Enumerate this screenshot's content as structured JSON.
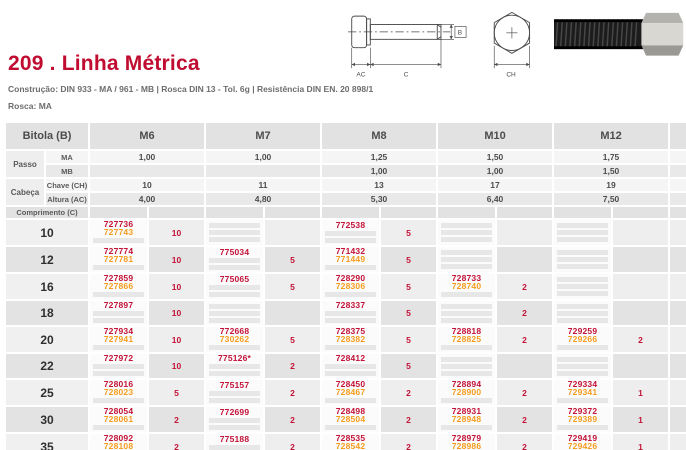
{
  "header": {
    "title": "209 . Linha Métrica",
    "construction": "Construção: DIN 933 - MA / 961 - MB | Rosca DIN 13 - Tol. 6g | Resistência DIN EN. 20 898/1",
    "rosca": "Rosca: MA"
  },
  "diagram": {
    "labels": {
      "ac": "AC",
      "c": "C",
      "b": "B",
      "ch": "CH"
    }
  },
  "colors": {
    "accent": "#c00c30",
    "code_ma": "#c31238",
    "code_mb": "#f59c1d",
    "header_bg": "#e2e2e2"
  },
  "table": {
    "bitola_header": "Bitola (B)",
    "sizes": [
      "M6",
      "M7",
      "M8",
      "M10",
      "M12"
    ],
    "spec_groups": [
      {
        "label": "Passo",
        "rows": [
          {
            "label": "MA",
            "values": [
              "1,00",
              "1,00",
              "1,25",
              "1,50",
              "1,75"
            ]
          },
          {
            "label": "MB",
            "values": [
              "",
              "",
              "1,00",
              "1,00",
              "1,50"
            ]
          }
        ]
      },
      {
        "label": "Cabeça",
        "rows": [
          {
            "label": "Chave (CH)",
            "values": [
              "10",
              "11",
              "13",
              "17",
              "19"
            ]
          },
          {
            "label": "Altura (AC)",
            "values": [
              "4,00",
              "4,80",
              "5,30",
              "6,40",
              "7,50"
            ]
          }
        ]
      }
    ],
    "comprimento_header": "Comprimento (C)",
    "length_rows": [
      {
        "length": "10",
        "cells": [
          {
            "ma": "727736",
            "mb": "727743",
            "qty": "10"
          },
          {
            "ma": "",
            "mb": "",
            "qty": ""
          },
          {
            "ma": "772538",
            "mb": "",
            "qty": "5"
          },
          {
            "ma": "",
            "mb": "",
            "qty": ""
          },
          {
            "ma": "",
            "mb": "",
            "qty": ""
          }
        ]
      },
      {
        "length": "12",
        "cells": [
          {
            "ma": "727774",
            "mb": "727781",
            "qty": "10"
          },
          {
            "ma": "775034",
            "mb": "",
            "qty": "5"
          },
          {
            "ma": "771432",
            "mb": "771449",
            "qty": "5"
          },
          {
            "ma": "",
            "mb": "",
            "qty": ""
          },
          {
            "ma": "",
            "mb": "",
            "qty": ""
          }
        ]
      },
      {
        "length": "16",
        "cells": [
          {
            "ma": "727859",
            "mb": "727866",
            "qty": "10"
          },
          {
            "ma": "775065",
            "mb": "",
            "qty": "5"
          },
          {
            "ma": "728290",
            "mb": "728306",
            "qty": "5"
          },
          {
            "ma": "728733",
            "mb": "728740",
            "qty": "2"
          },
          {
            "ma": "",
            "mb": "",
            "qty": ""
          }
        ]
      },
      {
        "length": "18",
        "cells": [
          {
            "ma": "727897",
            "mb": "",
            "qty": "10"
          },
          {
            "ma": "",
            "mb": "",
            "qty": ""
          },
          {
            "ma": "728337",
            "mb": "",
            "qty": "5"
          },
          {
            "ma": "",
            "mb": "",
            "qty": "2"
          },
          {
            "ma": "",
            "mb": "",
            "qty": ""
          }
        ]
      },
      {
        "length": "20",
        "cells": [
          {
            "ma": "727934",
            "mb": "727941",
            "qty": "10"
          },
          {
            "ma": "772668",
            "mb": "730262",
            "qty": "5"
          },
          {
            "ma": "728375",
            "mb": "728382",
            "qty": "5"
          },
          {
            "ma": "728818",
            "mb": "728825",
            "qty": "2"
          },
          {
            "ma": "729259",
            "mb": "729266",
            "qty": "2"
          }
        ]
      },
      {
        "length": "22",
        "cells": [
          {
            "ma": "727972",
            "mb": "",
            "qty": "10"
          },
          {
            "ma": "775126*",
            "mb": "",
            "qty": "2"
          },
          {
            "ma": "728412",
            "mb": "",
            "qty": "5"
          },
          {
            "ma": "",
            "mb": "",
            "qty": ""
          },
          {
            "ma": "",
            "mb": "",
            "qty": ""
          }
        ]
      },
      {
        "length": "25",
        "cells": [
          {
            "ma": "728016",
            "mb": "728023",
            "qty": "5"
          },
          {
            "ma": "775157",
            "mb": "",
            "qty": "2"
          },
          {
            "ma": "728450",
            "mb": "728467",
            "qty": "2"
          },
          {
            "ma": "728894",
            "mb": "728900",
            "qty": "2"
          },
          {
            "ma": "729334",
            "mb": "729341",
            "qty": "1"
          }
        ]
      },
      {
        "length": "30",
        "cells": [
          {
            "ma": "728054",
            "mb": "728061",
            "qty": "2"
          },
          {
            "ma": "772699",
            "mb": "",
            "qty": "2"
          },
          {
            "ma": "728498",
            "mb": "728504",
            "qty": "2"
          },
          {
            "ma": "728931",
            "mb": "728948",
            "qty": "2"
          },
          {
            "ma": "729372",
            "mb": "729389",
            "qty": "1"
          }
        ]
      },
      {
        "length": "35",
        "cells": [
          {
            "ma": "728092",
            "mb": "728108",
            "qty": "2"
          },
          {
            "ma": "775188",
            "mb": "",
            "qty": "2"
          },
          {
            "ma": "728535",
            "mb": "728542",
            "qty": "2"
          },
          {
            "ma": "728979",
            "mb": "728986",
            "qty": "2"
          },
          {
            "ma": "729419",
            "mb": "729426",
            "qty": "1"
          }
        ]
      }
    ]
  }
}
